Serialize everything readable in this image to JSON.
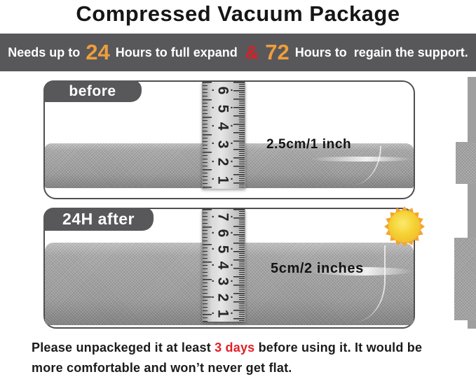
{
  "title": "Compressed Vacuum Package",
  "banner": {
    "prefix": "Needs up to ",
    "hours_expand": "24",
    "middle": " Hours to full expand ",
    "ampersand": "&",
    "hours_support": "72",
    "suffix": " Hours to  regain the support."
  },
  "panels": {
    "before": {
      "tab_label": "before",
      "measurement": "2.5cm/1 inch",
      "ruler_numbers": [
        "6",
        "5",
        "4",
        "3",
        "2",
        "1"
      ]
    },
    "after": {
      "tab_label": "24H after",
      "measurement": "5cm/2 inches",
      "ruler_numbers": [
        "7",
        "6",
        "5",
        "4",
        "3",
        "2",
        "1"
      ]
    }
  },
  "footer": {
    "prefix": "Please unpackeged it at least ",
    "highlight": "3 days",
    "suffix": " before using it. It would be more comfortable and won’t never get flat."
  },
  "icons": {
    "ruler_dot": "·",
    "sun": "sun-icon"
  },
  "colors": {
    "banner_bg": "#58585B",
    "tab_bg": "#58585B",
    "accent_orange": "#EE9E3C",
    "accent_red": "#D42127",
    "footer_red": "#E02128",
    "panel_border": "#4F4F4F",
    "cushion_gray": "#A9A9A9",
    "sun_ray": "#F2A52F",
    "sun_core": "#F5D02F"
  }
}
